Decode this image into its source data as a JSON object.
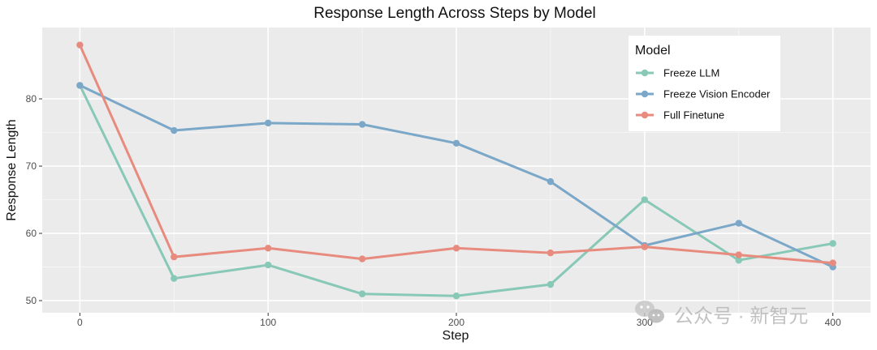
{
  "chart_data": {
    "type": "line",
    "title": "Response Length Across Steps by Model",
    "xlabel": "Step",
    "ylabel": "Response Length",
    "x": [
      0,
      50,
      100,
      150,
      200,
      250,
      300,
      350,
      400
    ],
    "x_ticks": [
      0,
      100,
      200,
      300,
      400
    ],
    "y_ticks": [
      50,
      60,
      70,
      80
    ],
    "xlim": [
      -20,
      420
    ],
    "ylim": [
      48.2,
      90.6
    ],
    "grid": true,
    "legend": {
      "title": "Model",
      "position": "top-right"
    },
    "series": [
      {
        "name": "Freeze LLM",
        "color": "#88c8b6",
        "values": [
          82.0,
          53.3,
          55.3,
          51.0,
          50.7,
          52.4,
          65.0,
          56.0,
          58.5
        ]
      },
      {
        "name": "Freeze Vision Encoder",
        "color": "#7ba7c8",
        "values": [
          82.0,
          75.3,
          76.4,
          76.2,
          73.4,
          67.7,
          58.2,
          61.5,
          55.0
        ]
      },
      {
        "name": "Full Finetune",
        "color": "#e88b7f",
        "values": [
          88.0,
          56.5,
          57.8,
          56.2,
          57.8,
          57.1,
          58.0,
          56.8,
          55.6
        ]
      }
    ]
  },
  "watermark": {
    "text": "公众号 · 新智元",
    "icon": "wechat-icon"
  }
}
